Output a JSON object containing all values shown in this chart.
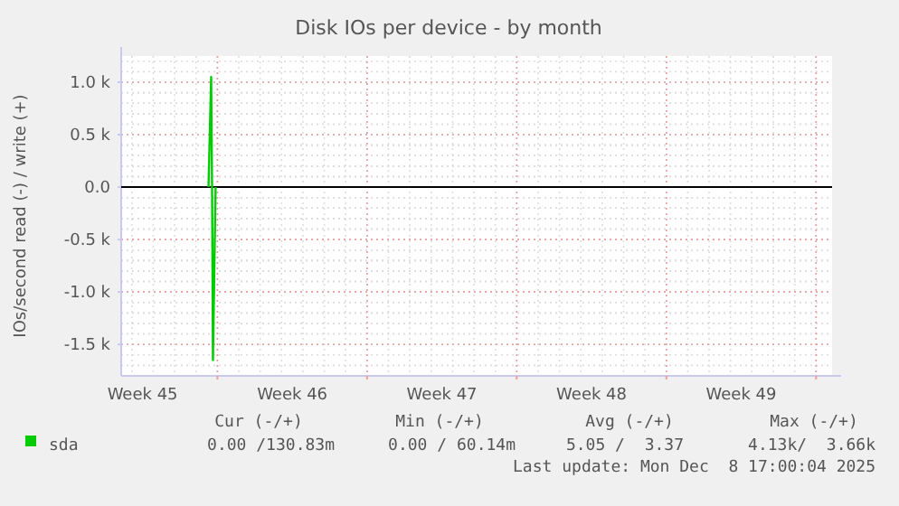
{
  "chart_data": {
    "type": "line",
    "title": "Disk IOs per device - by month",
    "ylabel": "IOs/second read (-) / write (+)",
    "xlim": [
      "2025-11-05T12:00",
      "2025-12-08T18:00"
    ],
    "xticks": [
      {
        "value": "2025-11-06T12:00",
        "label": "Week 45"
      },
      {
        "value": "2025-11-10",
        "label": null
      },
      {
        "value": "2025-11-13T12:00",
        "label": "Week 46"
      },
      {
        "value": "2025-11-17",
        "label": null
      },
      {
        "value": "2025-11-20T12:00",
        "label": "Week 47"
      },
      {
        "value": "2025-11-24",
        "label": null
      },
      {
        "value": "2025-11-27T12:00",
        "label": "Week 48"
      },
      {
        "value": "2025-12-01",
        "label": null
      },
      {
        "value": "2025-12-04T12:00",
        "label": "Week 49"
      },
      {
        "value": "2025-12-08",
        "label": null
      }
    ],
    "ylim": [
      -1800,
      1250
    ],
    "yticks": [
      {
        "value": -1500,
        "label": "-1.5 k"
      },
      {
        "value": -1000,
        "label": "-1.0 k"
      },
      {
        "value": -500,
        "label": "-0.5 k"
      },
      {
        "value": 0,
        "label": "0.0"
      },
      {
        "value": 500,
        "label": "0.5 k"
      },
      {
        "value": 1000,
        "label": "1.0 k"
      }
    ],
    "grid": true,
    "legend": "bottom left",
    "series": [
      {
        "name": "sda",
        "color": "#00cc00",
        "x": [
          "2025-11-09T14:00",
          "2025-11-09T17:00",
          "2025-11-09T18:00",
          "2025-11-09T19:00",
          "2025-11-09T22:00"
        ],
        "values": [
          0,
          1050,
          0,
          -1650,
          0
        ]
      }
    ],
    "ref_lines": [
      {
        "axis": "y",
        "value": 0,
        "color": "#000000"
      }
    ],
    "annotations": [
      "Cur (-/+)",
      "Min (-/+)",
      "Avg (-/+)",
      "Max (-/+)",
      "0.00 /130.83m",
      "0.00 / 60.14m",
      "5.05 /  3.37",
      "4.13k/  3.66k",
      "Last update: Mon Dec  8 17:00:04 2025"
    ]
  }
}
